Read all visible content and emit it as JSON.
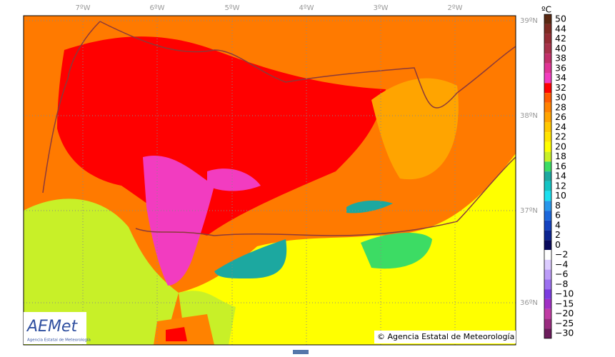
{
  "map": {
    "longitude_labels": [
      "7ºW",
      "6ºW",
      "5ºW",
      "4ºW",
      "3ºW",
      "2ºW"
    ],
    "latitude_labels": [
      "39ºN",
      "38ºN",
      "37ºN",
      "36ºN"
    ],
    "copyright": "© Agencia Estatal de Meteorología",
    "logo": {
      "name": "AEMet",
      "subtitle": "Agencia Estatal de Meteorología"
    }
  },
  "legend": {
    "unit": "ºC",
    "labels": [
      "50",
      "44",
      "42",
      "40",
      "38",
      "36",
      "34",
      "32",
      "30",
      "28",
      "26",
      "24",
      "22",
      "20",
      "18",
      "16",
      "14",
      "12",
      "10",
      "8",
      "6",
      "4",
      "2",
      "0",
      "−2",
      "−4",
      "−6",
      "−8",
      "−10",
      "−15",
      "−20",
      "−25",
      "−30"
    ],
    "colors": [
      "#5a2812",
      "#7e2a22",
      "#952c34",
      "#a8324a",
      "#c2306a",
      "#e03496",
      "#f23cc0",
      "#ff0000",
      "#ff5a00",
      "#ff8200",
      "#ffa400",
      "#ffc800",
      "#ffe400",
      "#ffff00",
      "#c8f028",
      "#3cdc64",
      "#1ca8a0",
      "#14c4c4",
      "#1ce0f0",
      "#2898ec",
      "#1c68dc",
      "#1442c0",
      "#0c2490",
      "#0a0a5c",
      "#ffffff",
      "#dcccff",
      "#bc9cf8",
      "#9c70f0",
      "#7c3ce0",
      "#a030c4",
      "#c03ca4",
      "#9a2c80",
      "#6c1c5c"
    ]
  }
}
